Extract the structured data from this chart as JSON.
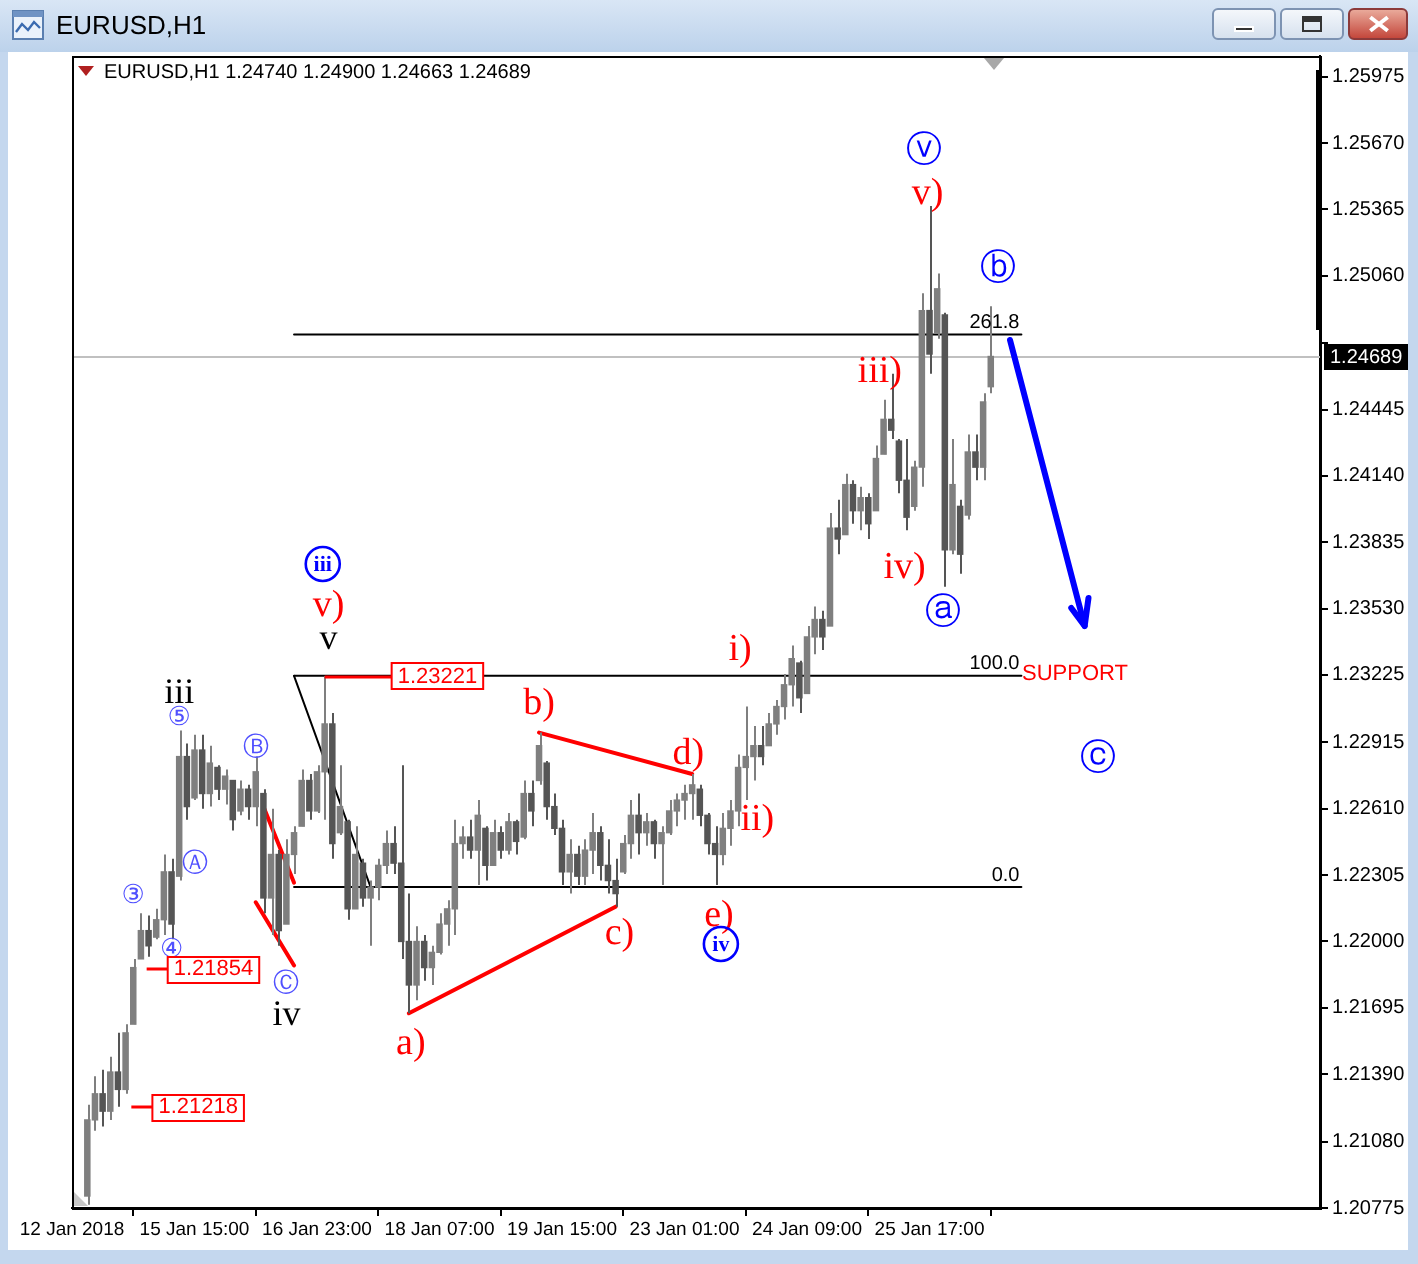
{
  "chart_data": {
    "type": "candlestick",
    "title": "EURUSD,H1",
    "subtitle": "EURUSD,H1 1.24740 1.24900 1.24663 1.24689",
    "categories": [
      "12 Jan 2018",
      null,
      null,
      null,
      null,
      null,
      null,
      null,
      null,
      null,
      null,
      null,
      null,
      null,
      null,
      null,
      "15 Jan 15:00",
      null,
      null,
      null,
      null,
      null,
      null,
      null,
      null,
      null,
      null,
      null,
      null,
      null,
      null,
      null,
      "16 Jan 23:00",
      null,
      null,
      null,
      null,
      null,
      null,
      null,
      null,
      null,
      null,
      null,
      null,
      null,
      null,
      null,
      "18 Jan 07:00",
      null,
      null,
      null,
      null,
      null,
      null,
      null,
      null,
      null,
      null,
      null,
      null,
      null,
      null,
      null,
      "19 Jan 15:00",
      null,
      null,
      null,
      null,
      null,
      null,
      null,
      null,
      null,
      null,
      null,
      null,
      null,
      null,
      null,
      "23 Jan 01:00",
      null,
      null,
      null,
      null,
      null,
      null,
      null,
      null,
      null,
      null,
      null,
      null,
      null,
      null,
      null,
      "24 Jan 09:00",
      null,
      null,
      null,
      null,
      null,
      null,
      null,
      null,
      null,
      null,
      null,
      null,
      null,
      null,
      null,
      "25 Jan 17:00",
      null,
      null,
      null,
      null,
      null,
      null,
      null,
      null,
      null,
      null,
      null,
      null,
      null,
      null,
      null,
      null,
      null,
      null,
      null,
      null,
      null,
      null,
      null,
      null,
      null,
      null,
      null,
      null,
      null,
      null,
      null,
      null,
      null,
      null,
      null,
      null,
      null,
      null,
      null,
      null,
      null,
      null,
      null,
      null,
      null,
      null,
      null,
      null,
      null,
      null,
      null
    ],
    "ohlc": [
      null,
      null,
      [
        1.2083,
        1.2125,
        1.2079,
        1.2118
      ],
      [
        1.2118,
        1.2138,
        1.2113,
        1.213
      ],
      [
        1.213,
        1.2141,
        1.2115,
        1.2122
      ],
      [
        1.2122,
        1.2147,
        1.2118,
        1.214
      ],
      [
        1.214,
        1.2158,
        1.2124,
        1.2132
      ],
      [
        1.2132,
        1.2162,
        1.213,
        1.2158
      ],
      [
        1.2162,
        1.2192,
        1.2162,
        1.2188
      ],
      [
        1.2192,
        1.2213,
        1.2192,
        1.2205
      ],
      [
        1.2205,
        1.2212,
        1.2193,
        1.2198
      ],
      [
        1.2202,
        1.2215,
        1.2201,
        1.221
      ],
      [
        1.221,
        1.224,
        1.2203,
        1.2232
      ],
      [
        1.2232,
        1.2238,
        1.2201,
        1.2208
      ],
      [
        1.223,
        1.2297,
        1.2228,
        1.2285
      ],
      [
        1.2285,
        1.2291,
        1.2256,
        1.2262
      ],
      [
        1.2266,
        1.2295,
        1.2265,
        1.2288
      ],
      [
        1.2288,
        1.2295,
        1.2261,
        1.2268
      ],
      [
        1.2268,
        1.229,
        1.2262,
        1.2282
      ],
      [
        1.228,
        1.2281,
        1.2265,
        1.227
      ],
      [
        1.227,
        1.2279,
        1.2263,
        1.2276
      ],
      [
        1.2274,
        1.2274,
        1.2251,
        1.2256
      ],
      [
        1.226,
        1.2274,
        1.2258,
        1.227
      ],
      [
        1.227,
        1.2272,
        1.2256,
        1.2262
      ],
      [
        1.2262,
        1.2285,
        1.2253,
        1.2278
      ],
      [
        1.2268,
        1.227,
        1.2213,
        1.222
      ],
      [
        1.222,
        1.2261,
        1.2203,
        1.224
      ],
      [
        1.224,
        1.2242,
        1.2198,
        1.2205
      ],
      [
        1.2208,
        1.2247,
        1.2208,
        1.224
      ],
      [
        1.224,
        1.2253,
        1.2231,
        1.225
      ],
      [
        1.2253,
        1.2279,
        1.2253,
        1.2274
      ],
      [
        1.2274,
        1.2277,
        1.2256,
        1.226
      ],
      [
        1.226,
        1.2281,
        1.2259,
        1.2278
      ],
      [
        1.2278,
        1.2322,
        1.2256,
        1.23
      ],
      [
        1.23,
        1.2305,
        1.2238,
        1.2245
      ],
      [
        1.225,
        1.2281,
        1.2249,
        1.2262
      ],
      [
        1.2255,
        1.2256,
        1.221,
        1.2215
      ],
      [
        1.2215,
        1.2253,
        1.2215,
        1.224
      ],
      [
        1.2236,
        1.2238,
        1.2216,
        1.222
      ],
      [
        1.222,
        1.2228,
        1.2198,
        1.2225
      ],
      [
        1.2225,
        1.2238,
        1.2219,
        1.2235
      ],
      [
        1.2235,
        1.2251,
        1.2231,
        1.2245
      ],
      [
        1.2245,
        1.2253,
        1.2231,
        1.2236
      ],
      [
        1.2236,
        1.2281,
        1.2192,
        1.22
      ],
      [
        1.22,
        1.2222,
        1.2167,
        1.218
      ],
      [
        1.218,
        1.2207,
        1.2173,
        1.22
      ],
      [
        1.22,
        1.2203,
        1.2182,
        1.2188
      ],
      [
        1.2188,
        1.2198,
        1.218,
        1.2195
      ],
      [
        1.2195,
        1.2213,
        1.2194,
        1.2208
      ],
      [
        1.2208,
        1.2219,
        1.2198,
        1.2215
      ],
      [
        1.2215,
        1.2256,
        1.2203,
        1.2245
      ],
      [
        1.2245,
        1.2253,
        1.2238,
        1.2248
      ],
      [
        1.2248,
        1.2256,
        1.2238,
        1.2242
      ],
      [
        1.2242,
        1.2265,
        1.2226,
        1.2258
      ],
      [
        1.2252,
        1.2253,
        1.2228,
        1.2235
      ],
      [
        1.2235,
        1.2256,
        1.2235,
        1.225
      ],
      [
        1.225,
        1.2253,
        1.2238,
        1.2242
      ],
      [
        1.2242,
        1.2259,
        1.224,
        1.2255
      ],
      [
        1.2255,
        1.2256,
        1.224,
        1.2246
      ],
      [
        1.2248,
        1.2274,
        1.2247,
        1.2268
      ],
      [
        1.2268,
        1.2274,
        1.2253,
        1.226
      ],
      [
        1.2274,
        1.2296,
        1.2272,
        1.229
      ],
      [
        1.2282,
        1.2283,
        1.2256,
        1.2262
      ],
      [
        1.2262,
        1.2268,
        1.2249,
        1.2252
      ],
      [
        1.2252,
        1.2256,
        1.2226,
        1.2232
      ],
      [
        1.2232,
        1.2247,
        1.2222,
        1.224
      ],
      [
        1.224,
        1.2244,
        1.2226,
        1.223
      ],
      [
        1.223,
        1.2247,
        1.2226,
        1.2242
      ],
      [
        1.2242,
        1.2259,
        1.2231,
        1.225
      ],
      [
        1.225,
        1.2253,
        1.2228,
        1.2235
      ],
      [
        1.2235,
        1.2247,
        1.2222,
        1.2228
      ],
      [
        1.2228,
        1.2238,
        1.2216,
        1.2222
      ],
      [
        1.2232,
        1.2249,
        1.2231,
        1.2245
      ],
      [
        1.2245,
        1.2265,
        1.2238,
        1.2258
      ],
      [
        1.2258,
        1.2268,
        1.224,
        1.225
      ],
      [
        1.225,
        1.2259,
        1.2244,
        1.2255
      ],
      [
        1.2255,
        1.2256,
        1.2238,
        1.2245
      ],
      [
        1.2245,
        1.2253,
        1.2226,
        1.225
      ],
      [
        1.225,
        1.2265,
        1.2249,
        1.226
      ],
      [
        1.226,
        1.2268,
        1.2253,
        1.2265
      ],
      [
        1.2265,
        1.2272,
        1.2256,
        1.2268
      ],
      [
        1.2268,
        1.2277,
        1.2256,
        1.2272
      ],
      [
        1.227,
        1.2272,
        1.2253,
        1.2258
      ],
      [
        1.2258,
        1.2259,
        1.224,
        1.2245
      ],
      [
        1.2245,
        1.2253,
        1.2226,
        1.224
      ],
      [
        1.224,
        1.2259,
        1.2235,
        1.2252
      ],
      [
        1.2252,
        1.2265,
        1.2244,
        1.226
      ],
      [
        1.226,
        1.2286,
        1.2253,
        1.228
      ],
      [
        1.228,
        1.2308,
        1.2265,
        1.2285
      ],
      [
        1.2285,
        1.2299,
        1.2274,
        1.229
      ],
      [
        1.229,
        1.2299,
        1.2281,
        1.2285
      ],
      [
        1.229,
        1.2305,
        1.229,
        1.23
      ],
      [
        1.23,
        1.2311,
        1.2295,
        1.2308
      ],
      [
        1.2308,
        1.2323,
        1.2302,
        1.2318
      ],
      [
        1.2318,
        1.2336,
        1.2308,
        1.233
      ],
      [
        1.2328,
        1.2329,
        1.2305,
        1.2312
      ],
      [
        1.2314,
        1.2345,
        1.2314,
        1.234
      ],
      [
        1.234,
        1.2354,
        1.2332,
        1.2348
      ],
      [
        1.2348,
        1.2352,
        1.2334,
        1.234
      ],
      [
        1.2345,
        1.2397,
        1.2345,
        1.239
      ],
      [
        1.239,
        1.2403,
        1.2378,
        1.2385
      ],
      [
        1.2387,
        1.2415,
        1.2387,
        1.241
      ],
      [
        1.241,
        1.2412,
        1.2392,
        1.2398
      ],
      [
        1.2398,
        1.2409,
        1.2389,
        1.2404
      ],
      [
        1.2404,
        1.2406,
        1.2385,
        1.2392
      ],
      [
        1.2398,
        1.2428,
        1.2398,
        1.2422
      ],
      [
        1.2424,
        1.2449,
        1.2424,
        1.244
      ],
      [
        1.244,
        1.2461,
        1.2431,
        1.2435
      ],
      [
        1.243,
        1.2431,
        1.2406,
        1.2412
      ],
      [
        1.2412,
        1.2431,
        1.2389,
        1.2395
      ],
      [
        1.24,
        1.2421,
        1.2398,
        1.2418
      ],
      [
        1.2418,
        1.2498,
        1.2409,
        1.249
      ],
      [
        1.249,
        1.2538,
        1.2461,
        1.247
      ],
      [
        1.248,
        1.2507,
        1.2477,
        1.25
      ],
      [
        1.2488,
        1.2489,
        1.2363,
        1.238
      ],
      [
        1.238,
        1.2431,
        1.2378,
        1.241
      ],
      [
        1.24,
        1.2403,
        1.2369,
        1.2378
      ],
      [
        1.2396,
        1.2433,
        1.2394,
        1.2425
      ],
      [
        1.2425,
        1.2433,
        1.2412,
        1.2418
      ],
      [
        1.2418,
        1.2452,
        1.2412,
        1.2448
      ],
      [
        1.2455,
        1.2492,
        1.2452,
        1.24689
      ],
      null,
      null,
      null,
      null,
      null,
      null,
      null,
      null,
      null,
      null,
      null,
      null,
      null,
      null,
      null,
      null,
      null,
      null,
      null,
      null,
      null,
      null,
      null,
      null,
      null,
      null,
      null,
      null,
      null,
      null,
      null,
      null,
      null,
      null,
      null,
      null,
      null,
      null,
      null,
      null,
      null,
      null,
      null
    ],
    "colors": [
      null,
      null,
      "#7f7f7f",
      "#7f7f7f",
      "#555555",
      "#7f7f7f",
      "#555555",
      "#7f7f7f",
      "#7f7f7f",
      "#7f7f7f",
      "#555555",
      "#7f7f7f",
      "#7f7f7f",
      "#555555",
      "#7f7f7f",
      "#555555",
      "#7f7f7f",
      "#555555",
      "#7f7f7f",
      "#555555",
      "#7f7f7f",
      "#555555",
      "#7f7f7f",
      "#555555",
      "#7f7f7f",
      "#555555",
      "#7f7f7f",
      "#555555",
      "#7f7f7f",
      "#7f7f7f",
      "#7f7f7f",
      "#555555",
      "#7f7f7f",
      "#7f7f7f",
      "#555555",
      "#7f7f7f",
      "#555555",
      "#7f7f7f",
      "#555555",
      "#7f7f7f",
      "#7f7f7f",
      "#7f7f7f",
      "#555555",
      "#555555",
      "#555555",
      "#7f7f7f",
      "#555555",
      "#7f7f7f",
      "#7f7f7f",
      "#7f7f7f",
      "#7f7f7f",
      "#7f7f7f",
      "#555555",
      "#7f7f7f",
      "#555555",
      "#7f7f7f",
      "#555555",
      "#7f7f7f",
      "#555555",
      "#7f7f7f",
      "#555555",
      "#7f7f7f",
      "#555555",
      "#555555",
      "#555555",
      "#7f7f7f",
      "#555555",
      "#7f7f7f",
      "#7f7f7f",
      "#555555",
      "#555555",
      "#555555",
      "#7f7f7f",
      "#7f7f7f",
      "#555555",
      "#7f7f7f",
      "#555555",
      "#7f7f7f",
      "#7f7f7f",
      "#7f7f7f",
      "#7f7f7f",
      "#7f7f7f",
      "#555555",
      "#555555",
      "#555555",
      "#7f7f7f",
      "#7f7f7f",
      "#7f7f7f",
      "#7f7f7f",
      "#7f7f7f",
      "#555555",
      "#7f7f7f",
      "#7f7f7f",
      "#7f7f7f",
      "#7f7f7f",
      "#555555",
      "#7f7f7f",
      "#7f7f7f",
      "#555555",
      "#7f7f7f",
      "#555555",
      "#7f7f7f",
      "#555555",
      "#7f7f7f",
      "#555555",
      "#7f7f7f",
      "#7f7f7f",
      "#555555",
      "#555555",
      "#555555",
      "#7f7f7f",
      "#7f7f7f",
      "#555555",
      "#7f7f7f",
      "#555555",
      "#7f7f7f",
      "#555555",
      "#7f7f7f",
      "#555555",
      "#7f7f7f",
      "#7f7f7f",
      null,
      null,
      null,
      null,
      null,
      null,
      null,
      null,
      null,
      null,
      null,
      null,
      null,
      null,
      null,
      null,
      null,
      null,
      null,
      null,
      null,
      null,
      null,
      null,
      null,
      null,
      null,
      null,
      null,
      null,
      null,
      null,
      null,
      null,
      null,
      null,
      null,
      null,
      null,
      null,
      null,
      null,
      null
    ],
    "series": [
      {
        "type": "line",
        "color": "#000000",
        "values": [
          null,
          null,
          null,
          null,
          null,
          null,
          null,
          null,
          null,
          null,
          null,
          null,
          null,
          null,
          null,
          null,
          null,
          null,
          null,
          null,
          null,
          null,
          null,
          null,
          null,
          null,
          null,
          null,
          null,
          1.2479,
          null,
          null,
          null,
          null,
          null,
          null,
          null,
          null,
          null,
          null,
          null,
          null,
          null,
          null,
          null,
          null,
          null,
          null,
          null,
          null,
          null,
          null,
          null,
          null,
          null,
          null,
          null,
          null,
          null,
          null,
          null,
          null,
          null,
          null,
          null,
          null,
          null,
          null,
          null,
          null,
          null,
          null,
          null,
          null,
          null,
          null,
          null,
          null,
          null,
          null,
          null,
          null,
          null,
          null,
          null,
          null,
          null,
          null,
          null,
          null,
          null,
          null,
          null,
          null,
          null,
          null,
          null,
          null,
          null,
          null,
          null,
          null,
          null,
          null,
          null,
          null,
          null,
          null,
          null,
          null,
          null,
          null,
          null,
          null,
          null,
          null,
          null,
          null,
          null,
          null,
          null,
          null,
          null,
          null,
          1.2479,
          null,
          null,
          null,
          null,
          null,
          null,
          null,
          null,
          null,
          null,
          null,
          null,
          null,
          null,
          null,
          null,
          null,
          null,
          null,
          null,
          null,
          null,
          null,
          null,
          null,
          null,
          null,
          null,
          null,
          null,
          null,
          null,
          null,
          null,
          null,
          null,
          null,
          null,
          null
        ]
      },
      {
        "type": "line",
        "color": "#000000",
        "values": [
          null,
          null,
          null,
          null,
          null,
          null,
          null,
          null,
          null,
          null,
          null,
          null,
          null,
          null,
          null,
          null,
          null,
          null,
          null,
          null,
          null,
          null,
          null,
          null,
          null,
          null,
          null,
          null,
          null,
          1.23221,
          null,
          null,
          null,
          null,
          null,
          null,
          null,
          null,
          null,
          null,
          null,
          null,
          null,
          null,
          null,
          null,
          null,
          null,
          null,
          null,
          null,
          null,
          null,
          null,
          null,
          null,
          null,
          null,
          null,
          null,
          null,
          null,
          null,
          null,
          null,
          null,
          null,
          null,
          null,
          null,
          null,
          null,
          null,
          null,
          null,
          null,
          null,
          null,
          null,
          null,
          null,
          null,
          null,
          null,
          null,
          null,
          null,
          null,
          null,
          null,
          null,
          null,
          null,
          null,
          null,
          null,
          null,
          null,
          null,
          null,
          null,
          null,
          null,
          null,
          null,
          null,
          null,
          null,
          null,
          null,
          null,
          null,
          null,
          null,
          null,
          null,
          null,
          null,
          null,
          null,
          null,
          null,
          null,
          null,
          1.23221,
          null,
          null,
          null,
          null,
          null,
          null,
          null,
          null,
          null,
          null,
          null,
          null,
          null,
          null,
          null,
          null,
          null,
          null,
          null,
          null,
          null,
          null,
          null,
          null,
          null,
          null,
          null,
          null,
          null,
          null,
          null,
          null,
          null,
          null,
          null,
          null,
          null,
          null,
          null
        ]
      },
      {
        "type": "line",
        "color": "#000000",
        "values": [
          null,
          null,
          null,
          null,
          null,
          null,
          null,
          null,
          null,
          null,
          null,
          null,
          null,
          null,
          null,
          null,
          null,
          null,
          null,
          null,
          null,
          null,
          null,
          null,
          null,
          null,
          null,
          null,
          null,
          1.2225,
          null,
          null,
          null,
          null,
          null,
          null,
          null,
          null,
          null,
          null,
          null,
          null,
          null,
          null,
          null,
          null,
          null,
          null,
          null,
          null,
          null,
          null,
          null,
          null,
          null,
          null,
          null,
          null,
          null,
          null,
          null,
          null,
          null,
          null,
          null,
          null,
          null,
          null,
          null,
          null,
          null,
          null,
          null,
          null,
          null,
          null,
          null,
          null,
          null,
          null,
          null,
          null,
          null,
          null,
          null,
          null,
          null,
          null,
          null,
          null,
          null,
          null,
          null,
          null,
          null,
          null,
          null,
          null,
          null,
          null,
          null,
          null,
          null,
          null,
          null,
          null,
          null,
          null,
          null,
          null,
          null,
          null,
          null,
          null,
          null,
          null,
          null,
          null,
          null,
          null,
          null,
          null,
          null,
          null,
          1.2225,
          null,
          null,
          null,
          null,
          null,
          null,
          null,
          null,
          null,
          null,
          null,
          null,
          null,
          null,
          null,
          null,
          null,
          null,
          null,
          null,
          null,
          null,
          null,
          null,
          null,
          null,
          null,
          null,
          null,
          null,
          null,
          null,
          null,
          null,
          null,
          null,
          null,
          null,
          null
        ]
      },
      {
        "type": "line",
        "color": "#000000",
        "values": [
          null,
          null,
          null,
          null,
          null,
          null,
          null,
          null,
          null,
          null,
          null,
          null,
          null,
          null,
          null,
          null,
          null,
          null,
          null,
          null,
          null,
          null,
          null,
          null,
          null,
          null,
          null,
          null,
          null,
          1.23221,
          null,
          null,
          null,
          null,
          null,
          null,
          null,
          null,
          null,
          1.2225,
          null,
          null,
          null,
          null,
          null,
          null,
          null,
          null,
          null,
          null,
          null,
          null,
          null,
          null,
          null,
          null,
          null,
          null,
          null,
          null,
          null,
          null,
          null,
          null,
          null,
          null,
          null,
          null,
          null,
          null,
          null,
          null,
          null,
          null,
          null,
          null,
          null,
          null,
          null,
          null,
          null,
          null,
          null,
          null,
          null,
          null,
          null,
          null,
          null,
          null,
          null,
          null,
          null,
          null,
          null,
          null,
          null,
          null,
          null,
          null,
          null,
          null,
          null,
          null,
          null,
          null,
          null,
          null,
          null,
          null,
          null,
          null,
          null,
          null,
          null,
          null,
          null,
          null,
          null,
          null,
          null,
          null,
          null,
          null,
          null,
          null,
          null,
          null,
          null,
          null,
          null,
          null,
          null,
          null,
          null,
          null,
          null,
          null,
          null,
          null,
          null,
          null,
          null,
          null,
          null,
          null,
          null,
          null,
          null,
          null,
          null,
          null,
          null,
          null,
          null,
          null,
          null,
          null,
          null,
          null,
          null,
          null,
          null,
          null
        ]
      },
      {
        "type": "line",
        "color": "#ff0000",
        "values": [
          null,
          null,
          null,
          null,
          null,
          null,
          null,
          null,
          null,
          null,
          null,
          null,
          null,
          null,
          null,
          null,
          null,
          null,
          null,
          null,
          null,
          null,
          null,
          null,
          null,
          null,
          null,
          null,
          null,
          null,
          null,
          null,
          null,
          null,
          null,
          null,
          null,
          null,
          null,
          null,
          null,
          null,
          null,
          null,
          1.2167,
          null,
          null,
          null,
          null,
          null,
          null,
          null,
          null,
          null,
          null,
          null,
          null,
          null,
          null,
          null,
          null,
          null,
          null,
          null,
          null,
          null,
          null,
          null,
          null,
          null,
          null,
          1.2216,
          null,
          null,
          null,
          null,
          null,
          null,
          null,
          null,
          null,
          null,
          null,
          null,
          null,
          null,
          null,
          null,
          null,
          null,
          null,
          null,
          null,
          null,
          null,
          null,
          null,
          null,
          null,
          null,
          null,
          null,
          null,
          null,
          null,
          null,
          null,
          null,
          null,
          null,
          null,
          null,
          null,
          null,
          null,
          null,
          null,
          null,
          null,
          null,
          null,
          null,
          null,
          null,
          null,
          null,
          null,
          null,
          null,
          null,
          null,
          null,
          null,
          null,
          null,
          null,
          null,
          null,
          null,
          null,
          null,
          null,
          null,
          null,
          null,
          null,
          null,
          null,
          null,
          null,
          null,
          null,
          null,
          null,
          null,
          null,
          null,
          null,
          null,
          null,
          null,
          null,
          null,
          null
        ]
      },
      {
        "type": "line",
        "color": "#ff0000",
        "values": [
          null,
          null,
          null,
          null,
          null,
          null,
          null,
          null,
          null,
          null,
          null,
          null,
          null,
          null,
          null,
          null,
          null,
          null,
          null,
          null,
          null,
          null,
          null,
          null,
          null,
          null,
          null,
          null,
          null,
          null,
          null,
          null,
          null,
          null,
          null,
          null,
          null,
          null,
          null,
          null,
          null,
          null,
          null,
          null,
          null,
          null,
          null,
          null,
          null,
          null,
          null,
          null,
          null,
          null,
          null,
          null,
          null,
          null,
          null,
          null,
          null,
          1.2296,
          null,
          null,
          null,
          null,
          null,
          null,
          null,
          null,
          null,
          null,
          null,
          null,
          null,
          null,
          null,
          null,
          null,
          null,
          null,
          1.2277,
          null,
          null,
          null,
          null,
          null,
          null,
          null,
          null,
          null,
          null,
          null,
          null,
          null,
          null,
          null,
          null,
          null,
          null,
          null,
          null,
          null,
          null,
          null,
          null,
          null,
          null,
          null,
          null,
          null,
          null,
          null,
          null,
          null,
          null,
          null,
          null,
          null,
          null,
          null,
          null,
          null,
          null,
          null,
          null,
          null,
          null,
          null,
          null,
          null,
          null,
          null,
          null,
          null,
          null,
          null,
          null,
          null,
          null,
          null,
          null,
          null,
          null,
          null,
          null,
          null,
          null,
          null,
          null,
          null,
          null,
          null,
          null,
          null,
          null,
          null,
          null,
          null,
          null,
          null,
          null,
          null,
          null
        ]
      },
      {
        "type": "line",
        "color": "#ff0000",
        "values": [
          null,
          null,
          null,
          null,
          null,
          null,
          null,
          null,
          null,
          null,
          null,
          null,
          null,
          null,
          null,
          null,
          null,
          null,
          null,
          null,
          null,
          null,
          null,
          null,
          null,
          1.2262,
          null,
          null,
          null,
          1.2227,
          null,
          null,
          null,
          null,
          null,
          null,
          null,
          null,
          null,
          null,
          null,
          null,
          null,
          null,
          null,
          null,
          null,
          null,
          null,
          null,
          null,
          null,
          null,
          null,
          null,
          null,
          null,
          null,
          null,
          null,
          null,
          null,
          null,
          null,
          null,
          null,
          null,
          null,
          null,
          null,
          null,
          null,
          null,
          null,
          null,
          null,
          null,
          null,
          null,
          null,
          null,
          null,
          null,
          null,
          null,
          null,
          null,
          null,
          null,
          null,
          null,
          null,
          null,
          null,
          null,
          null,
          null,
          null,
          null,
          null,
          null,
          null,
          null,
          null,
          null,
          null,
          null,
          null,
          null,
          null,
          null,
          null,
          null,
          null,
          null,
          null,
          null,
          null,
          null,
          null,
          null,
          null,
          null,
          null,
          null,
          null,
          null,
          null,
          null,
          null,
          null,
          null,
          null,
          null,
          null,
          null,
          null,
          null,
          null,
          null,
          null,
          null,
          null,
          null,
          null,
          null,
          null,
          null,
          null,
          null,
          null,
          null,
          null,
          null,
          null,
          null,
          null,
          null,
          null,
          null,
          null,
          null,
          null,
          null
        ]
      },
      {
        "type": "line",
        "color": "#ff0000",
        "values": [
          null,
          null,
          null,
          null,
          null,
          null,
          null,
          null,
          null,
          null,
          null,
          null,
          null,
          null,
          null,
          null,
          null,
          null,
          null,
          null,
          null,
          null,
          null,
          null,
          1.2218,
          null,
          null,
          null,
          null,
          1.2189,
          null,
          null,
          null,
          null,
          null,
          null,
          null,
          null,
          null,
          null,
          null,
          null,
          null,
          null,
          null,
          null,
          null,
          null,
          null,
          null,
          null,
          null,
          null,
          null,
          null,
          null,
          null,
          null,
          null,
          null,
          null,
          null,
          null,
          null,
          null,
          null,
          null,
          null,
          null,
          null,
          null,
          null,
          null,
          null,
          null,
          null,
          null,
          null,
          null,
          null,
          null,
          null,
          null,
          null,
          null,
          null,
          null,
          null,
          null,
          null,
          null,
          null,
          null,
          null,
          null,
          null,
          null,
          null,
          null,
          null,
          null,
          null,
          null,
          null,
          null,
          null,
          null,
          null,
          null,
          null,
          null,
          null,
          null,
          null,
          null,
          null,
          null,
          null,
          null,
          null,
          null,
          null,
          null,
          null,
          null,
          null,
          null,
          null,
          null,
          null,
          null,
          null,
          null,
          null,
          null,
          null,
          null,
          null,
          null,
          null,
          null,
          null,
          null,
          null,
          null,
          null,
          null,
          null,
          null,
          null,
          null,
          null,
          null,
          null,
          null,
          null,
          null,
          null,
          null,
          null,
          null,
          null,
          null,
          null
        ]
      }
    ],
    "ylim": [
      1.20775,
      1.2607
    ],
    "yticks": [
      1.20775,
      {
        "value": 1.2108,
        "label": "1.21080"
      },
      {
        "value": 1.2139,
        "label": "1.21390"
      },
      1.21695,
      {
        "value": 1.22,
        "label": "1.22000"
      },
      1.22305,
      {
        "value": 1.2261,
        "label": "1.22610"
      },
      1.22915,
      1.23225,
      {
        "value": 1.2353,
        "label": "1.23530"
      },
      1.23835,
      {
        "value": 1.2414,
        "label": "1.24140"
      },
      1.24445,
      {
        "value": 1.2475,
        "label": null
      },
      {
        "value": 1.2506,
        "label": "1.25060"
      },
      1.25365,
      {
        "value": 1.2567,
        "label": "1.25670"
      },
      1.25975
    ],
    "ref_lines": [
      {
        "axis": "y",
        "value": 1.24689,
        "label": "1.24689",
        "color": "#c0c0c0"
      }
    ],
    "annotations": [
      "iii",
      "⑤",
      "Ⓑ",
      "Ⓐ",
      "③",
      "④",
      "1.21854",
      "Ⓒ",
      "iv",
      "1.21218",
      "iii",
      "v)",
      "v",
      {
        "text": "1.23221",
        "y": 1.23221
      },
      "a)",
      "b)",
      "c)",
      "d)",
      "e)",
      "iv",
      "i)",
      "ii)",
      "iii)",
      "iv)",
      "v)",
      "ⓥ",
      "ⓐ",
      "ⓑ",
      {
        "text": "261.8",
        "y": 1.2479
      },
      {
        "text": "100.0",
        "y": 1.23221
      },
      {
        "text": "0.0",
        "y": 1.2225
      },
      "SUPPORT",
      "ⓒ"
    ]
  }
}
